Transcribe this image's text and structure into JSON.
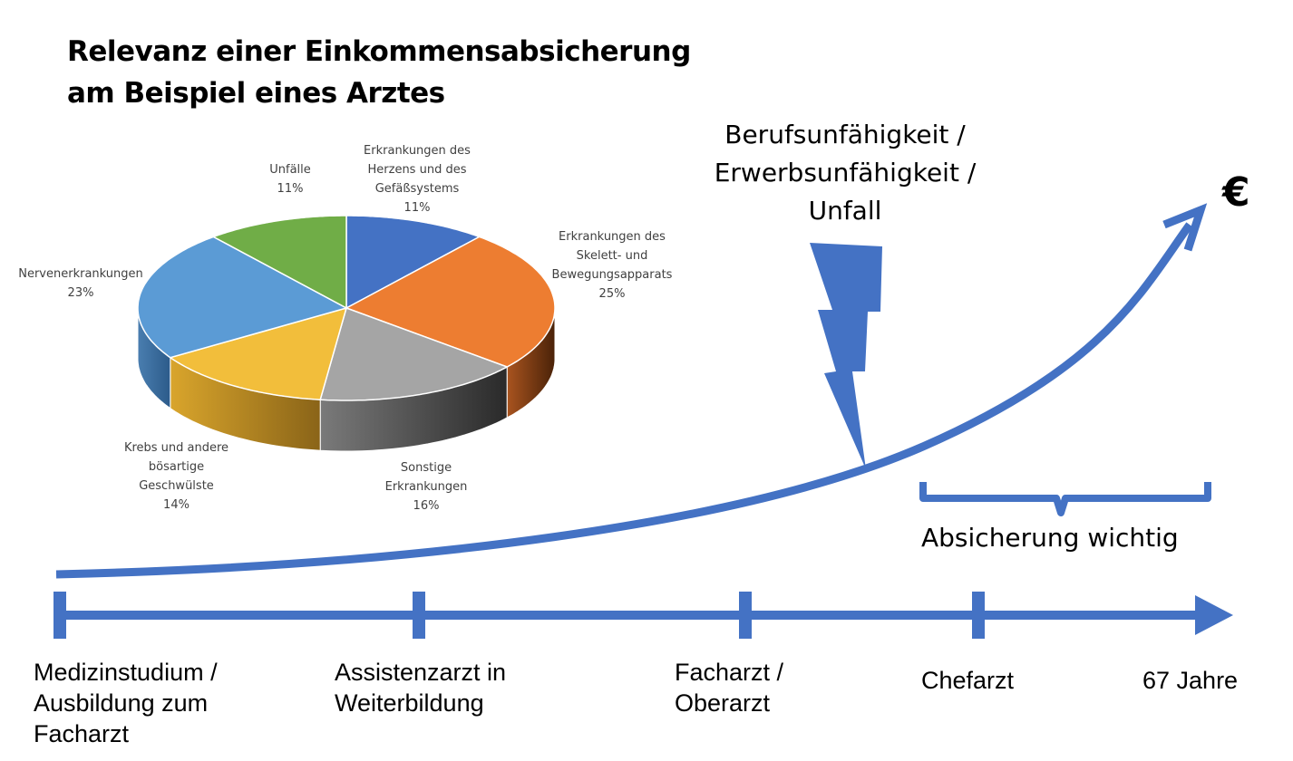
{
  "title": {
    "line1": "Relevanz einer Einkommensabsicherung",
    "line2": "am Beispiel eines Arztes"
  },
  "chart_data": [
    {
      "type": "pie",
      "title": "",
      "slices": [
        {
          "label": [
            "Erkrankungen des",
            "Herzens und des",
            "Gefäßsystems"
          ],
          "value": 11,
          "value_label": "11%",
          "color": "#4472C4"
        },
        {
          "label": [
            "Erkrankungen des",
            "Skelett- und",
            "Bewegungsapparats"
          ],
          "value": 25,
          "value_label": "25%",
          "color": "#ED7D31"
        },
        {
          "label": [
            "Sonstige",
            "Erkrankungen"
          ],
          "value": 16,
          "value_label": "16%",
          "color": "#A5A5A5"
        },
        {
          "label": [
            "Krebs und andere",
            "bösartige",
            "Geschwülste"
          ],
          "value": 14,
          "value_label": "14%",
          "color": "#F2BE3B"
        },
        {
          "label": [
            "Nervenerkrankungen"
          ],
          "value": 23,
          "value_label": "23%",
          "color": "#5B9BD5"
        },
        {
          "label": [
            "Unfälle"
          ],
          "value": 11,
          "value_label": "11%",
          "color": "#70AD47"
        }
      ],
      "style": "3d-pie"
    }
  ],
  "risk_label": [
    "Berufsunfähigkeit /",
    "Erwerbsunfähigkeit /",
    "Unfall"
  ],
  "currency_symbol": "€",
  "coverage_label": "Absicherung wichtig",
  "timeline": {
    "stages": [
      {
        "lines": [
          "Medizinstudium /",
          "Ausbildung zum",
          "Facharzt"
        ]
      },
      {
        "lines": [
          "Assistenzarzt in",
          "Weiterbildung"
        ]
      },
      {
        "lines": [
          "Facharzt /",
          "Oberarzt"
        ]
      },
      {
        "lines": [
          "Chefarzt"
        ]
      },
      {
        "lines": [
          "67 Jahre"
        ]
      }
    ]
  },
  "colors": {
    "accent_blue": "#4472C4",
    "lightning": "#4472C4"
  }
}
